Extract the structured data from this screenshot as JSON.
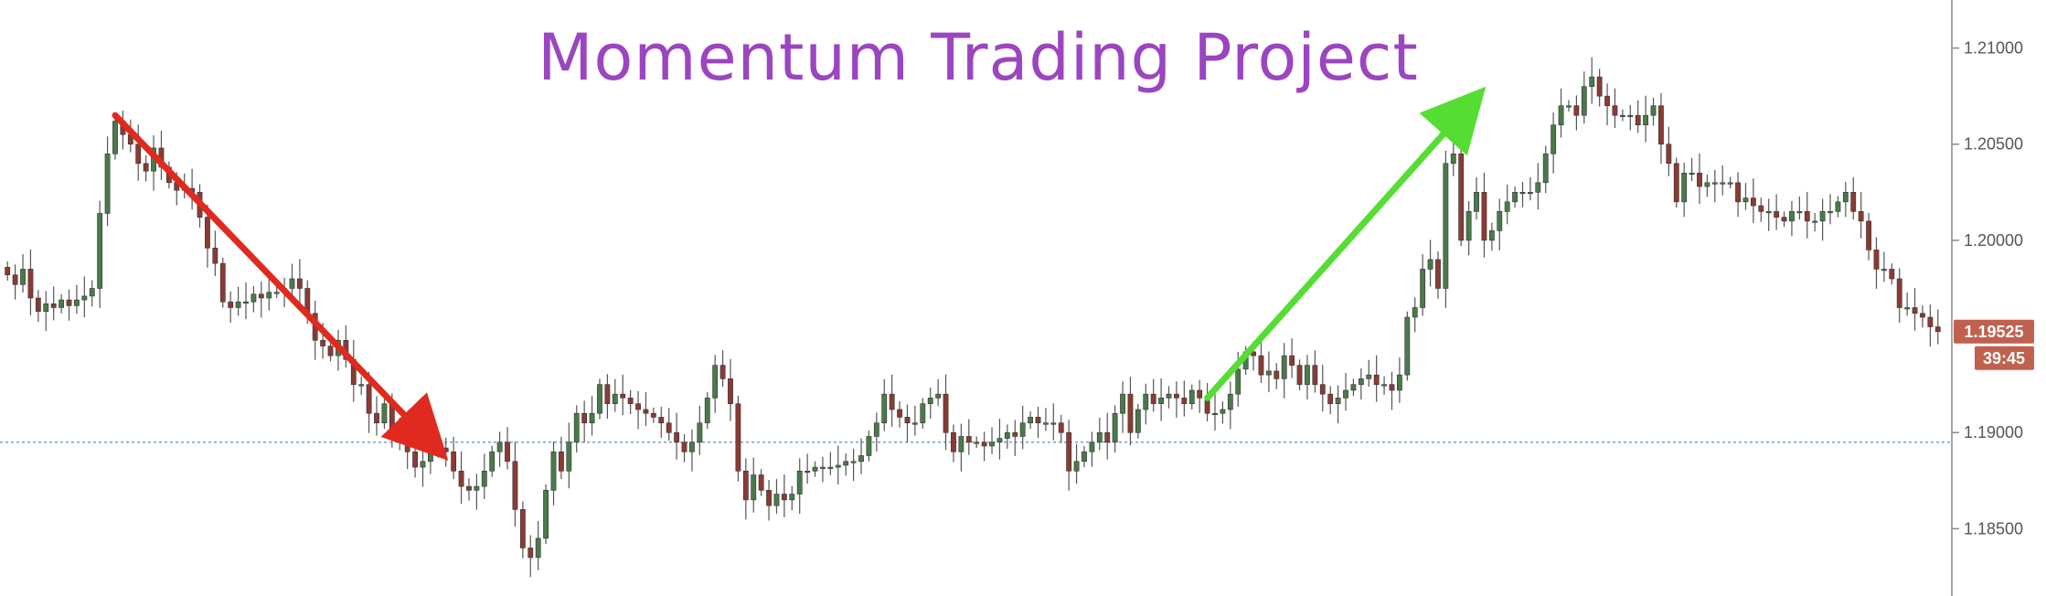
{
  "chart_data": {
    "type": "candlestick",
    "title": "Momentum Trading Project",
    "y_axis": {
      "position": "right",
      "ylim": [
        1.1815,
        1.2125
      ],
      "ticks": [
        "1.21000",
        "1.20500",
        "1.20000",
        "1.19000",
        "1.18500"
      ]
    },
    "current_price": {
      "label": "1.19525",
      "value": 1.19525,
      "countdown": "39:45",
      "color": "#c0604f"
    },
    "horizontal_line": {
      "value": 1.1895,
      "style": "dotted",
      "color": "#5a8fbf"
    },
    "colors": {
      "up": "#4a7a4a",
      "down": "#8c3a34",
      "wick": "#555555"
    },
    "arrows": [
      {
        "name": "downtrend",
        "color": "#e02a20",
        "from": {
          "bar": 14,
          "price": 1.2065
        },
        "to": {
          "bar": 55,
          "price": 1.1895
        }
      },
      {
        "name": "uptrend",
        "color": "#55dd33",
        "from": {
          "bar": 156,
          "price": 1.1918
        },
        "to": {
          "bar": 190,
          "price": 1.207
        }
      }
    ],
    "closes": [
      1.1982,
      1.1977,
      1.1985,
      1.197,
      1.1963,
      1.1967,
      1.1965,
      1.1969,
      1.1966,
      1.1969,
      1.1971,
      1.1975,
      1.2014,
      1.2045,
      1.2062,
      1.2055,
      1.205,
      1.204,
      1.2036,
      1.2048,
      1.2038,
      1.203,
      1.2026,
      1.2027,
      1.2025,
      1.2012,
      1.1996,
      1.1988,
      1.1968,
      1.1965,
      1.1968,
      1.1968,
      1.1972,
      1.197,
      1.1973,
      1.1973,
      1.1975,
      1.198,
      1.1975,
      1.1962,
      1.1948,
      1.1945,
      1.194,
      1.1948,
      1.1938,
      1.1925,
      1.1925,
      1.191,
      1.1905,
      1.1915,
      1.19,
      1.1895,
      1.189,
      1.1882,
      1.1885,
      1.189,
      1.1892,
      1.189,
      1.188,
      1.1872,
      1.187,
      1.1872,
      1.188,
      1.189,
      1.1895,
      1.1885,
      1.186,
      1.184,
      1.1835,
      1.1845,
      1.187,
      1.189,
      1.188,
      1.1895,
      1.191,
      1.1905,
      1.191,
      1.1925,
      1.1915,
      1.192,
      1.1918,
      1.1915,
      1.1912,
      1.191,
      1.1908,
      1.1905,
      1.19,
      1.1895,
      1.189,
      1.1895,
      1.1905,
      1.1918,
      1.1935,
      1.1928,
      1.1915,
      1.188,
      1.1865,
      1.1878,
      1.187,
      1.1862,
      1.1868,
      1.1865,
      1.1868,
      1.188,
      1.188,
      1.1882,
      1.1882,
      1.1882,
      1.1883,
      1.1885,
      1.1885,
      1.1888,
      1.1898,
      1.1905,
      1.192,
      1.1912,
      1.1908,
      1.1905,
      1.1905,
      1.1915,
      1.1918,
      1.192,
      1.19,
      1.189,
      1.1898,
      1.1895,
      1.1895,
      1.1893,
      1.1895,
      1.1897,
      1.19,
      1.1898,
      1.1905,
      1.1908,
      1.1905,
      1.1905,
      1.1905,
      1.19,
      1.188,
      1.1885,
      1.189,
      1.1895,
      1.19,
      1.1895,
      1.191,
      1.192,
      1.19,
      1.1912,
      1.192,
      1.1915,
      1.1918,
      1.192,
      1.1918,
      1.1915,
      1.1922,
      1.1918,
      1.191,
      1.191,
      1.1912,
      1.192,
      1.1933,
      1.1942,
      1.194,
      1.193,
      1.1932,
      1.1928,
      1.194,
      1.1935,
      1.1925,
      1.1935,
      1.1925,
      1.192,
      1.1915,
      1.1918,
      1.1922,
      1.1925,
      1.1928,
      1.193,
      1.1925,
      1.1925,
      1.1922,
      1.193,
      1.196,
      1.1965,
      1.1985,
      1.199,
      1.1975,
      1.204,
      1.2045,
      1.2,
      1.2015,
      1.2025,
      1.2,
      1.2005,
      1.2015,
      1.202,
      1.2025,
      1.2025,
      1.2025,
      1.203,
      1.2045,
      1.206,
      1.207,
      1.207,
      1.2065,
      1.208,
      1.2085,
      1.2075,
      1.207,
      1.2065,
      1.2065,
      1.2065,
      1.206,
      1.2065,
      1.207,
      1.205,
      1.204,
      1.202,
      1.2035,
      1.2035,
      1.2028,
      1.203,
      1.203,
      1.203,
      1.203,
      1.202,
      1.2022,
      1.2018,
      1.2015,
      1.2015,
      1.2012,
      1.201,
      1.2015,
      1.2015,
      1.201,
      1.201,
      1.2015,
      1.2015,
      1.202,
      1.2025,
      1.2015,
      1.201,
      1.1995,
      1.1985,
      1.1985,
      1.198,
      1.1965,
      1.1965,
      1.1962,
      1.196,
      1.1955,
      1.19525
    ]
  }
}
